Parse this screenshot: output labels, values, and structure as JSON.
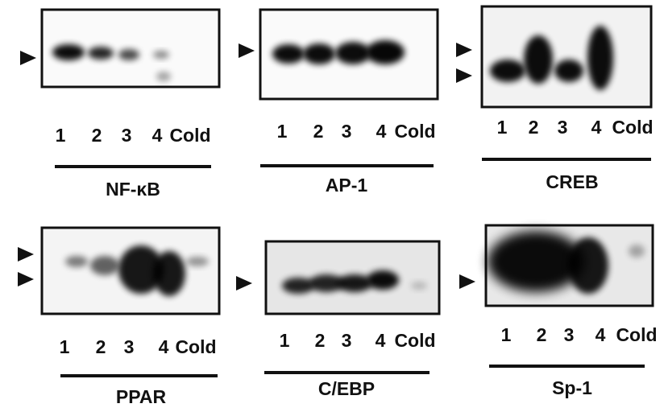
{
  "panels": [
    {
      "lanes": [
        "1",
        "2",
        "3",
        "4",
        "Cold"
      ],
      "name": "NF-κB"
    },
    {
      "lanes": [
        "1",
        "2",
        "3",
        "4",
        "Cold"
      ],
      "name": "AP-1"
    },
    {
      "lanes": [
        "1",
        "2",
        "3",
        "4",
        "Cold"
      ],
      "name": "CREB"
    },
    {
      "lanes": [
        "1",
        "2",
        "3",
        "4",
        "Cold"
      ],
      "name": "PPAR"
    },
    {
      "lanes": [
        "1",
        "2",
        "3",
        "4",
        "Cold"
      ],
      "name": "C/EBP"
    },
    {
      "lanes": [
        "1",
        "2",
        "3",
        "4",
        "Cold"
      ],
      "name": "Sp-1"
    }
  ]
}
